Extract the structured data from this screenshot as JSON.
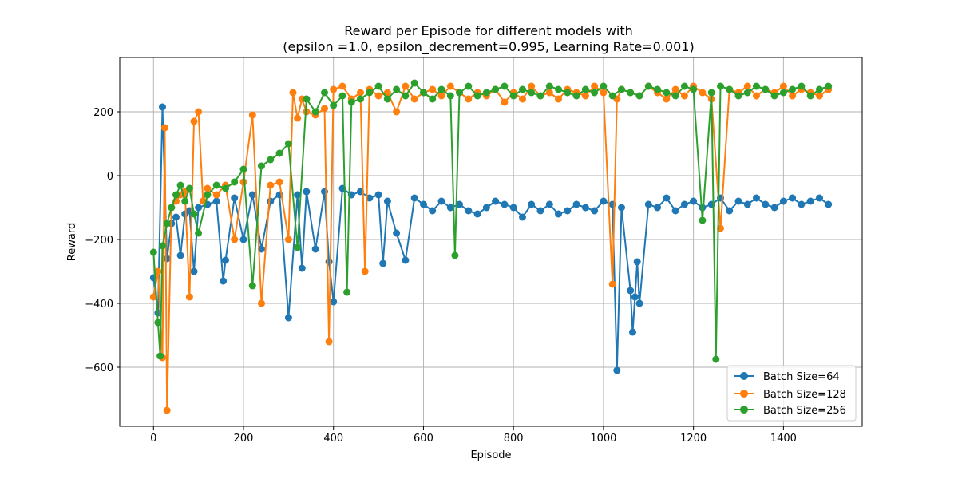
{
  "chart_data": {
    "type": "line",
    "title_line1": "Reward per Episode for different models with",
    "title_line2": "(epsilon =1.0, epsilon_decrement=0.995, Learning Rate=0.001)",
    "xlabel": "Episode",
    "ylabel": "Reward",
    "xlim": [
      -75,
      1575
    ],
    "ylim": [
      -785,
      370
    ],
    "xticks": [
      0,
      200,
      400,
      600,
      800,
      1000,
      1200,
      1400
    ],
    "yticks": [
      -600,
      -400,
      -200,
      0,
      200
    ],
    "grid": true,
    "legend_position": "lower right",
    "marker": "circle",
    "series": [
      {
        "name": "Batch Size=64",
        "color": "#1f77b4",
        "x": [
          0,
          10,
          20,
          30,
          40,
          50,
          60,
          70,
          80,
          90,
          100,
          120,
          140,
          155,
          160,
          180,
          200,
          220,
          240,
          260,
          280,
          300,
          320,
          330,
          340,
          360,
          380,
          390,
          400,
          420,
          440,
          460,
          480,
          500,
          510,
          520,
          540,
          560,
          580,
          600,
          620,
          640,
          660,
          680,
          700,
          720,
          740,
          760,
          780,
          800,
          820,
          840,
          860,
          880,
          900,
          920,
          940,
          960,
          980,
          1000,
          1020,
          1030,
          1040,
          1060,
          1065,
          1070,
          1075,
          1080,
          1100,
          1120,
          1140,
          1160,
          1180,
          1200,
          1220,
          1240,
          1260,
          1280,
          1300,
          1320,
          1340,
          1360,
          1380,
          1400,
          1420,
          1440,
          1460,
          1480,
          1500
        ],
        "y": [
          -320,
          -430,
          215,
          -260,
          -150,
          -130,
          -250,
          -120,
          -110,
          -300,
          -100,
          -90,
          -80,
          -330,
          -265,
          -70,
          -200,
          -60,
          -230,
          -80,
          -60,
          -445,
          -60,
          -290,
          -50,
          -230,
          -50,
          -270,
          -395,
          -40,
          -60,
          -50,
          -70,
          -60,
          -275,
          -80,
          -180,
          -265,
          -70,
          -90,
          -110,
          -80,
          -100,
          -90,
          -110,
          -120,
          -100,
          -80,
          -90,
          -100,
          -130,
          -90,
          -110,
          -90,
          -120,
          -110,
          -90,
          -100,
          -110,
          -80,
          -90,
          -610,
          -100,
          -360,
          -490,
          -380,
          -270,
          -400,
          -90,
          -100,
          -70,
          -110,
          -90,
          -80,
          -100,
          -90,
          -70,
          -110,
          -80,
          -90,
          -70,
          -90,
          -100,
          -80,
          -70,
          -90,
          -80,
          -70,
          -90
        ]
      },
      {
        "name": "Batch Size=128",
        "color": "#ff7f0e",
        "x": [
          0,
          10,
          20,
          25,
          30,
          40,
          50,
          60,
          70,
          80,
          90,
          100,
          110,
          120,
          140,
          160,
          180,
          200,
          220,
          240,
          260,
          280,
          300,
          310,
          320,
          330,
          340,
          360,
          380,
          390,
          400,
          420,
          440,
          460,
          470,
          480,
          500,
          520,
          540,
          560,
          580,
          600,
          620,
          640,
          660,
          680,
          700,
          720,
          740,
          760,
          780,
          800,
          820,
          840,
          860,
          880,
          900,
          920,
          940,
          960,
          980,
          1000,
          1020,
          1030,
          1040,
          1060,
          1080,
          1100,
          1120,
          1140,
          1160,
          1180,
          1200,
          1220,
          1240,
          1260,
          1280,
          1300,
          1320,
          1340,
          1360,
          1380,
          1400,
          1420,
          1440,
          1460,
          1480,
          1500
        ],
        "y": [
          -380,
          -300,
          -570,
          150,
          -735,
          -100,
          -80,
          -60,
          -50,
          -380,
          170,
          200,
          -80,
          -40,
          -60,
          -30,
          -200,
          -20,
          190,
          -400,
          -30,
          -20,
          -200,
          260,
          180,
          240,
          200,
          190,
          210,
          -520,
          270,
          280,
          240,
          260,
          -300,
          270,
          250,
          260,
          200,
          280,
          240,
          260,
          270,
          250,
          280,
          260,
          240,
          260,
          250,
          270,
          230,
          260,
          240,
          280,
          250,
          260,
          240,
          270,
          260,
          250,
          280,
          260,
          -340,
          240,
          270,
          260,
          250,
          280,
          260,
          240,
          270,
          250,
          280,
          260,
          240,
          -165,
          270,
          260,
          280,
          250,
          270,
          260,
          280,
          250,
          270,
          260,
          250,
          270
        ]
      },
      {
        "name": "Batch Size=256",
        "color": "#2ca02c",
        "x": [
          0,
          10,
          15,
          20,
          30,
          40,
          50,
          60,
          70,
          80,
          90,
          100,
          120,
          140,
          160,
          180,
          200,
          220,
          240,
          260,
          280,
          300,
          320,
          340,
          360,
          380,
          400,
          420,
          430,
          440,
          460,
          480,
          500,
          520,
          540,
          560,
          580,
          600,
          620,
          640,
          660,
          670,
          680,
          700,
          720,
          740,
          760,
          780,
          800,
          820,
          840,
          860,
          880,
          900,
          920,
          940,
          960,
          980,
          1000,
          1020,
          1040,
          1060,
          1080,
          1100,
          1120,
          1140,
          1160,
          1180,
          1200,
          1220,
          1240,
          1250,
          1260,
          1280,
          1300,
          1320,
          1340,
          1360,
          1380,
          1400,
          1420,
          1440,
          1460,
          1480,
          1500
        ],
        "y": [
          -240,
          -460,
          -565,
          -220,
          -150,
          -100,
          -60,
          -30,
          -80,
          -40,
          -120,
          -180,
          -60,
          -30,
          -40,
          -20,
          20,
          -345,
          30,
          50,
          70,
          100,
          -225,
          240,
          200,
          260,
          220,
          250,
          -365,
          230,
          240,
          260,
          280,
          240,
          270,
          250,
          290,
          260,
          240,
          270,
          250,
          -250,
          260,
          280,
          250,
          260,
          270,
          280,
          250,
          270,
          260,
          250,
          280,
          270,
          260,
          250,
          270,
          260,
          280,
          250,
          270,
          260,
          250,
          280,
          270,
          260,
          250,
          280,
          270,
          -140,
          260,
          -575,
          280,
          270,
          250,
          260,
          280,
          270,
          250,
          260,
          270,
          280,
          250,
          270,
          280
        ]
      }
    ]
  }
}
